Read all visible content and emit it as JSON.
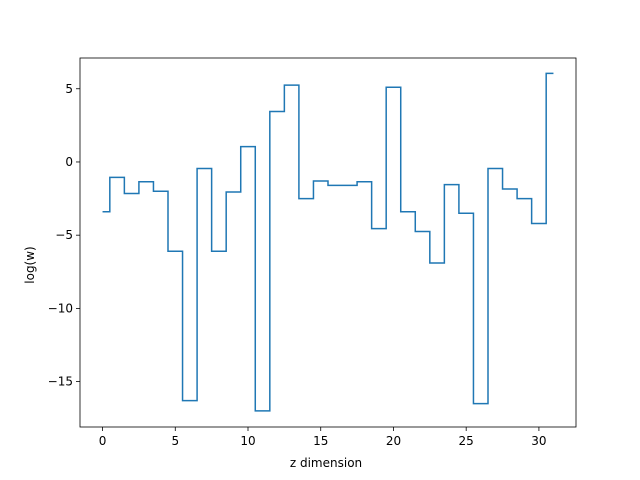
{
  "chart_data": {
    "type": "line",
    "drawstyle": "steps-mid",
    "xlabel": "z dimension",
    "ylabel": "log(w)",
    "xlim": [
      -1.55,
      32.55
    ],
    "ylim": [
      -18.1,
      7.1
    ],
    "xticks": [
      0,
      5,
      10,
      15,
      20,
      25,
      30
    ],
    "yticks": [
      5,
      0,
      -5,
      -10,
      -15
    ],
    "ytick_labels": [
      "5",
      "0",
      "−5",
      "−10",
      "−15"
    ],
    "grid": false,
    "color": "#1f77b4",
    "series": [
      {
        "x": [
          0,
          1,
          2,
          3,
          4,
          5,
          6,
          7,
          8,
          9,
          10,
          11,
          12,
          13,
          14,
          15,
          16,
          17,
          18,
          19,
          20,
          21,
          22,
          23,
          24,
          25,
          26,
          27,
          28,
          29,
          30,
          31
        ],
        "values": [
          -3.4,
          -1.05,
          -2.15,
          -1.35,
          -2.0,
          -6.1,
          -16.3,
          -0.45,
          -6.1,
          -2.05,
          1.05,
          -17.0,
          3.45,
          5.25,
          -2.5,
          -1.3,
          -1.6,
          -1.6,
          -1.35,
          -4.55,
          5.1,
          -3.4,
          -4.75,
          -6.9,
          -1.55,
          -3.5,
          -16.5,
          -0.45,
          -1.85,
          -2.5,
          -4.2,
          6.05
        ]
      }
    ]
  }
}
